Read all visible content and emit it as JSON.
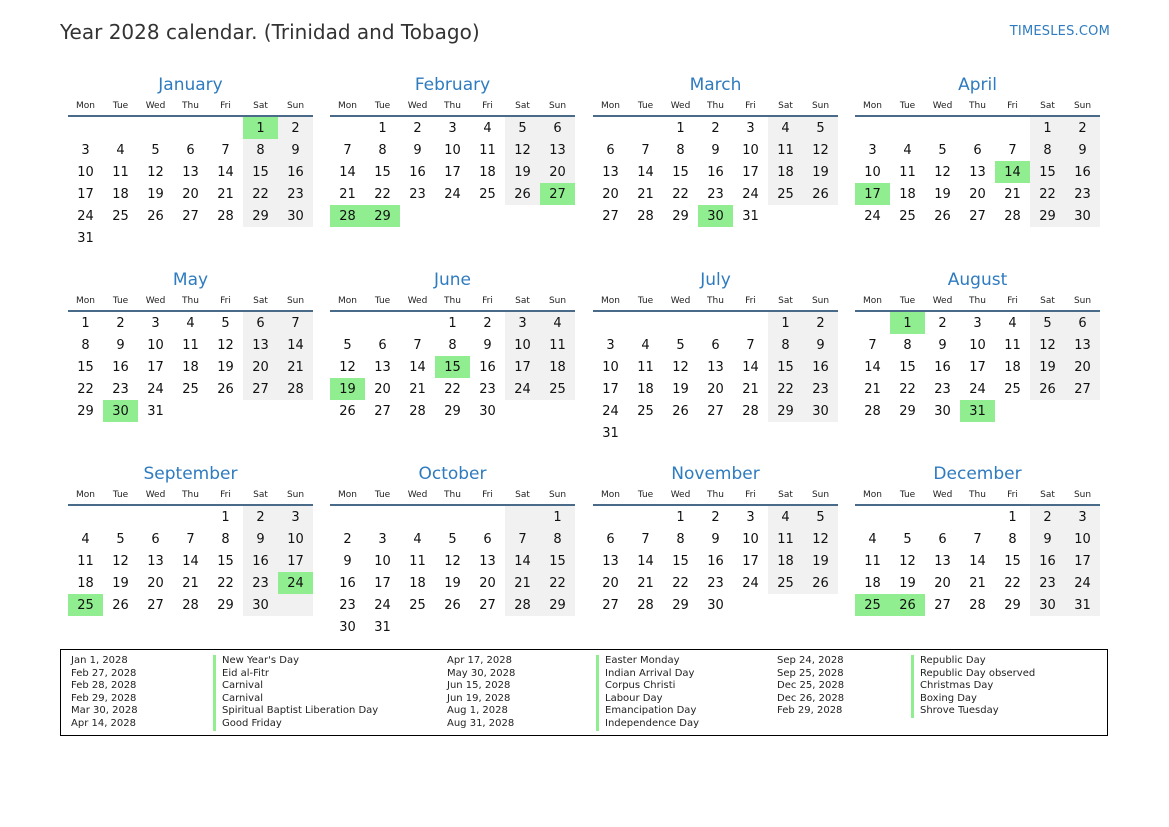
{
  "title": "Year 2028 calendar. (Trinidad and Tobago)",
  "brand": "TIMESLES.COM",
  "weekdays": [
    "Mon",
    "Tue",
    "Wed",
    "Thu",
    "Fri",
    "Sat",
    "Sun"
  ],
  "colors": {
    "accent": "#2e7bbf",
    "holiday": "#90ee90",
    "weekend": "#f1f1f1"
  },
  "months": [
    {
      "name": "January",
      "start": 6,
      "days": 31,
      "holidays": [
        1
      ]
    },
    {
      "name": "February",
      "start": 2,
      "days": 29,
      "holidays": [
        27,
        28,
        29
      ]
    },
    {
      "name": "March",
      "start": 3,
      "days": 31,
      "holidays": [
        30
      ]
    },
    {
      "name": "April",
      "start": 6,
      "days": 30,
      "holidays": [
        14,
        17
      ]
    },
    {
      "name": "May",
      "start": 1,
      "days": 31,
      "holidays": [
        30
      ]
    },
    {
      "name": "June",
      "start": 4,
      "days": 30,
      "holidays": [
        15,
        19
      ]
    },
    {
      "name": "July",
      "start": 6,
      "days": 31,
      "holidays": []
    },
    {
      "name": "August",
      "start": 2,
      "days": 31,
      "holidays": [
        1,
        31
      ]
    },
    {
      "name": "September",
      "start": 5,
      "days": 30,
      "holidays": [
        24,
        25
      ]
    },
    {
      "name": "October",
      "start": 7,
      "days": 31,
      "holidays": []
    },
    {
      "name": "November",
      "start": 3,
      "days": 30,
      "holidays": []
    },
    {
      "name": "December",
      "start": 5,
      "days": 31,
      "holidays": [
        25,
        26
      ]
    }
  ],
  "legend": [
    [
      {
        "date": "Jan 1, 2028",
        "name": "New Year's Day"
      },
      {
        "date": "Feb 27, 2028",
        "name": "Eid al-Fitr"
      },
      {
        "date": "Feb 28, 2028",
        "name": "Carnival"
      },
      {
        "date": "Feb 29, 2028",
        "name": "Carnival"
      },
      {
        "date": "Mar 30, 2028",
        "name": "Spiritual Baptist Liberation Day"
      },
      {
        "date": "Apr 14, 2028",
        "name": "Good Friday"
      }
    ],
    [
      {
        "date": "Apr 17, 2028",
        "name": "Easter Monday"
      },
      {
        "date": "May 30, 2028",
        "name": "Indian Arrival Day"
      },
      {
        "date": "Jun 15, 2028",
        "name": "Corpus Christi"
      },
      {
        "date": "Jun 19, 2028",
        "name": "Labour Day"
      },
      {
        "date": "Aug 1, 2028",
        "name": "Emancipation Day"
      },
      {
        "date": "Aug 31, 2028",
        "name": "Independence Day"
      }
    ],
    [
      {
        "date": "Sep 24, 2028",
        "name": "Republic Day"
      },
      {
        "date": "Sep 25, 2028",
        "name": "Republic Day observed"
      },
      {
        "date": "Dec 25, 2028",
        "name": "Christmas Day"
      },
      {
        "date": "Dec 26, 2028",
        "name": "Boxing Day"
      },
      {
        "date": "Feb 29, 2028",
        "name": "Shrove Tuesday"
      }
    ]
  ]
}
